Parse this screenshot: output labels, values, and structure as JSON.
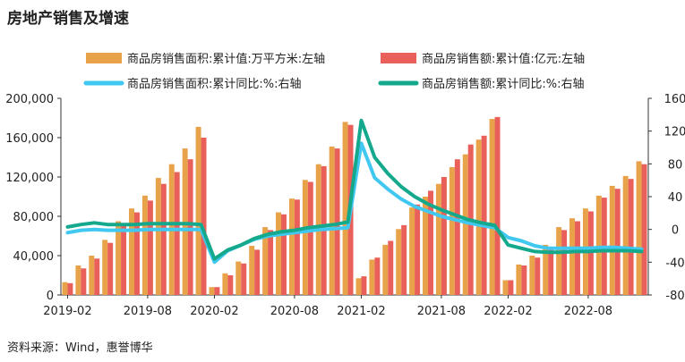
{
  "title": "房地产销售及增速",
  "source": "资料来源：Wind，惠誉博华",
  "colors": {
    "area_bar": "#E8A24A",
    "amount_bar": "#E9605A",
    "area_yoy": "#41C8F0",
    "amount_yoy": "#14A98C"
  },
  "chart_data": {
    "type": "bar",
    "x": [
      "2019-02",
      "2019-03",
      "2019-04",
      "2019-05",
      "2019-06",
      "2019-07",
      "2019-08",
      "2019-09",
      "2019-10",
      "2019-11",
      "2019-12",
      "2020-02",
      "2020-03",
      "2020-04",
      "2020-05",
      "2020-06",
      "2020-07",
      "2020-08",
      "2020-09",
      "2020-10",
      "2020-11",
      "2020-12",
      "2021-02",
      "2021-03",
      "2021-04",
      "2021-05",
      "2021-06",
      "2021-07",
      "2021-08",
      "2021-09",
      "2021-10",
      "2021-11",
      "2021-12",
      "2022-02",
      "2022-03",
      "2022-04",
      "2022-05",
      "2022-06",
      "2022-07",
      "2022-08",
      "2022-09",
      "2022-10",
      "2022-11",
      "2022-12"
    ],
    "xticks": [
      "2019-02",
      "2019-08",
      "2020-02",
      "2020-08",
      "2021-02",
      "2021-08",
      "2022-02",
      "2022-08"
    ],
    "left_axis": {
      "ylim": [
        0,
        200000
      ],
      "ticks": [
        "0",
        "40,000",
        "80,000",
        "120,000",
        "160,000",
        "200,000"
      ]
    },
    "right_axis": {
      "ylim": [
        -80,
        160
      ],
      "ticks": [
        "-80",
        "-40",
        "0",
        "40",
        "80",
        "120",
        "160"
      ]
    },
    "grid": false,
    "legend": "top",
    "series": [
      {
        "name": "商品房销售面积:累计值:万平方米:左轴",
        "type": "bar",
        "axis": "left",
        "values": [
          13000,
          30000,
          40000,
          56000,
          75000,
          88000,
          101000,
          119000,
          133000,
          149000,
          171000,
          8000,
          22000,
          34000,
          50000,
          69000,
          84000,
          98000,
          117000,
          133000,
          151000,
          176000,
          17000,
          36000,
          51000,
          67000,
          89000,
          100000,
          113000,
          130000,
          143000,
          158000,
          179000,
          15000,
          31000,
          40000,
          51000,
          69000,
          78000,
          88000,
          101000,
          111000,
          121000,
          136000
        ]
      },
      {
        "name": "商品房销售额:累计值:亿元:左轴",
        "type": "bar",
        "axis": "left",
        "values": [
          12000,
          27000,
          37000,
          53000,
          70000,
          84000,
          96000,
          113000,
          125000,
          138000,
          160000,
          8000,
          20000,
          32000,
          46000,
          66000,
          82000,
          97000,
          115000,
          131000,
          149000,
          173000,
          19000,
          38000,
          55000,
          71000,
          92000,
          106000,
          120000,
          138000,
          153000,
          162000,
          181000,
          15000,
          30000,
          38000,
          48000,
          66000,
          75000,
          85000,
          99000,
          108000,
          118000,
          133000
        ]
      },
      {
        "name": "商品房销售面积:累计同比:%:右轴",
        "type": "line",
        "axis": "right",
        "values": [
          -4,
          -1,
          0,
          -1,
          -1,
          -1,
          0,
          0,
          0,
          0,
          -0.1,
          -40,
          -26,
          -19,
          -12,
          -8,
          -6,
          -4,
          -2,
          0,
          1,
          2,
          105,
          63,
          49,
          37,
          28,
          22,
          16,
          12,
          8,
          5,
          2,
          -10,
          -14,
          -20,
          -23,
          -23,
          -23,
          -23,
          -22,
          -22,
          -23,
          -24
        ]
      },
      {
        "name": "商品房销售额:累计同比:%:右轴",
        "type": "line",
        "axis": "right",
        "values": [
          3,
          6,
          8,
          6,
          6,
          6,
          7,
          7,
          7,
          7,
          6,
          -36,
          -25,
          -19,
          -11,
          -6,
          -3,
          -1,
          2,
          4,
          6,
          9,
          133,
          88,
          68,
          52,
          40,
          31,
          24,
          18,
          12,
          8,
          5,
          -19,
          -23,
          -27,
          -28,
          -28,
          -27,
          -27,
          -26,
          -26,
          -26,
          -27
        ]
      }
    ]
  }
}
